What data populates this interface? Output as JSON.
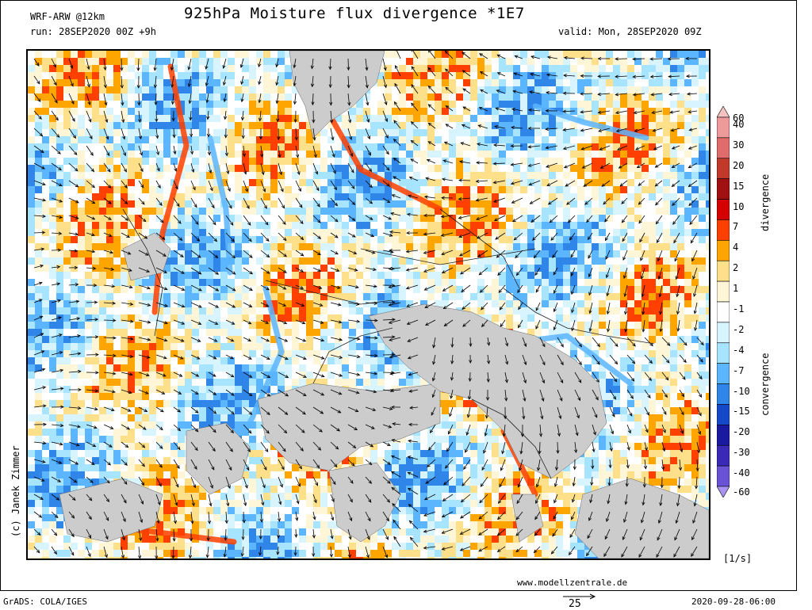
{
  "header": {
    "model": "WRF-ARW @12km",
    "run": "run: 28SEP2020 00Z +9h",
    "title": "925hPa Moisture flux divergence *1E7",
    "valid": "valid: Mon, 28SEP2020 09Z"
  },
  "credit": "(c) Janek Zimmer",
  "colorbar": {
    "levels": [
      {
        "label": "60",
        "color": "#f4c2c2"
      },
      {
        "label": "40",
        "color": "#ee9a9a"
      },
      {
        "label": "30",
        "color": "#e06c6c"
      },
      {
        "label": "20",
        "color": "#c0392b"
      },
      {
        "label": "15",
        "color": "#a01010"
      },
      {
        "label": "10",
        "color": "#d40000"
      },
      {
        "label": "7",
        "color": "#ff4000"
      },
      {
        "label": "4",
        "color": "#ffa500"
      },
      {
        "label": "2",
        "color": "#ffe08a"
      },
      {
        "label": "1",
        "color": "#fff6d8"
      },
      {
        "label": "-1",
        "color": "#ffffff"
      },
      {
        "label": "-2",
        "color": "#d8f4ff"
      },
      {
        "label": "-4",
        "color": "#a6e4ff"
      },
      {
        "label": "-7",
        "color": "#5bb5ff"
      },
      {
        "label": "-10",
        "color": "#2f85e8"
      },
      {
        "label": "-15",
        "color": "#1448c8"
      },
      {
        "label": "-20",
        "color": "#1a1aa0"
      },
      {
        "label": "-30",
        "color": "#3a2ab8"
      },
      {
        "label": "-40",
        "color": "#6a52d6"
      },
      {
        "label": "-60",
        "color": "#a894f0"
      }
    ],
    "divergence_label": "divergence",
    "convergence_label": "convergence",
    "unit": "[1/s]"
  },
  "footer": {
    "grads": "GrADS: COLA/IGES",
    "site": "www.modellzentrale.de",
    "vector_scale": "25",
    "timestamp": "2020-09-28-06:00"
  },
  "land_color": "#cccccc"
}
